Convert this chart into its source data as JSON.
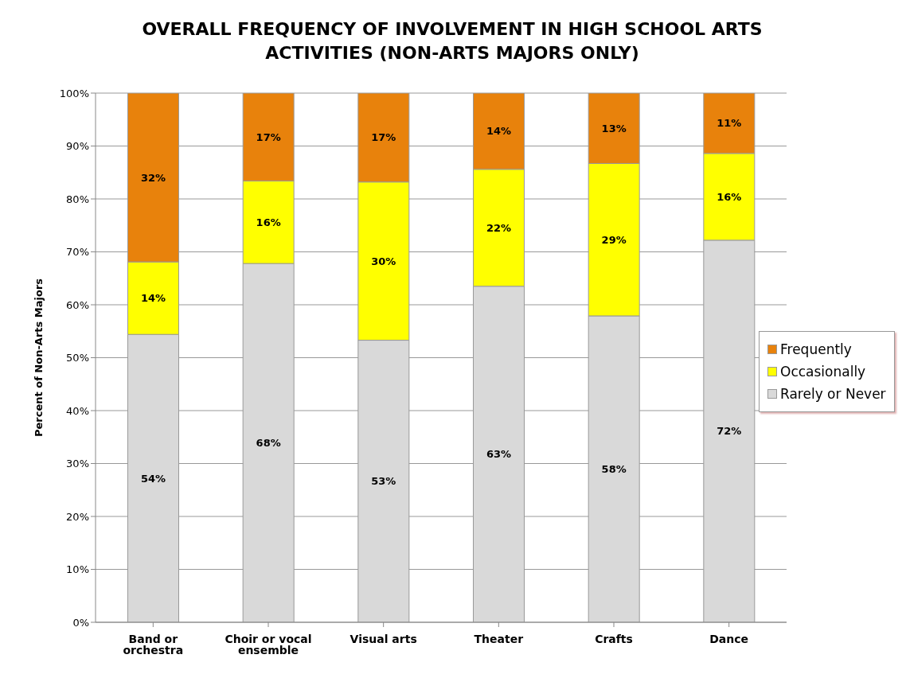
{
  "chart_data": {
    "type": "bar",
    "stacked": true,
    "title": "OVERALL FREQUENCY OF INVOLVEMENT IN HIGH SCHOOL ARTS ACTIVITIES (NON-ARTS MAJORS ONLY)",
    "ylabel": "Percent of Non-Arts Majors",
    "categories": [
      "Band or orchestra",
      "Choir or vocal ensemble",
      "Visual arts",
      "Theater",
      "Crafts",
      "Dance"
    ],
    "series": [
      {
        "name": "Rarely or Never",
        "color": "#d9d9d9",
        "values": [
          54.4,
          67.8,
          53.3,
          63.5,
          57.9,
          72.2
        ],
        "value_labels": [
          "54%",
          "68%",
          "53%",
          "63%",
          "58%",
          "72%"
        ]
      },
      {
        "name": "Occasionally",
        "color": "#ffff00",
        "values": [
          13.7,
          15.6,
          29.9,
          22.1,
          28.8,
          16.4
        ],
        "value_labels": [
          "14%",
          "16%",
          "30%",
          "22%",
          "29%",
          "16%"
        ]
      },
      {
        "name": "Frequently",
        "color": "#e8820c",
        "values": [
          31.9,
          16.6,
          16.8,
          14.4,
          13.3,
          11.4
        ],
        "value_labels": [
          "32%",
          "17%",
          "17%",
          "14%",
          "13%",
          "11%"
        ]
      }
    ],
    "ylim": [
      0,
      100
    ],
    "yticks": [
      {
        "value": 0,
        "label": "0%"
      },
      {
        "value": 10,
        "label": "10%"
      },
      {
        "value": 20,
        "label": "20%"
      },
      {
        "value": 30,
        "label": "30%"
      },
      {
        "value": 40,
        "label": "40%"
      },
      {
        "value": 50,
        "label": "50%"
      },
      {
        "value": 60,
        "label": "60%"
      },
      {
        "value": 70,
        "label": "70%"
      },
      {
        "value": 80,
        "label": "80%"
      },
      {
        "value": 90,
        "label": "90%"
      },
      {
        "value": 100,
        "label": "100%"
      }
    ],
    "grid": "y",
    "legend": "right"
  }
}
